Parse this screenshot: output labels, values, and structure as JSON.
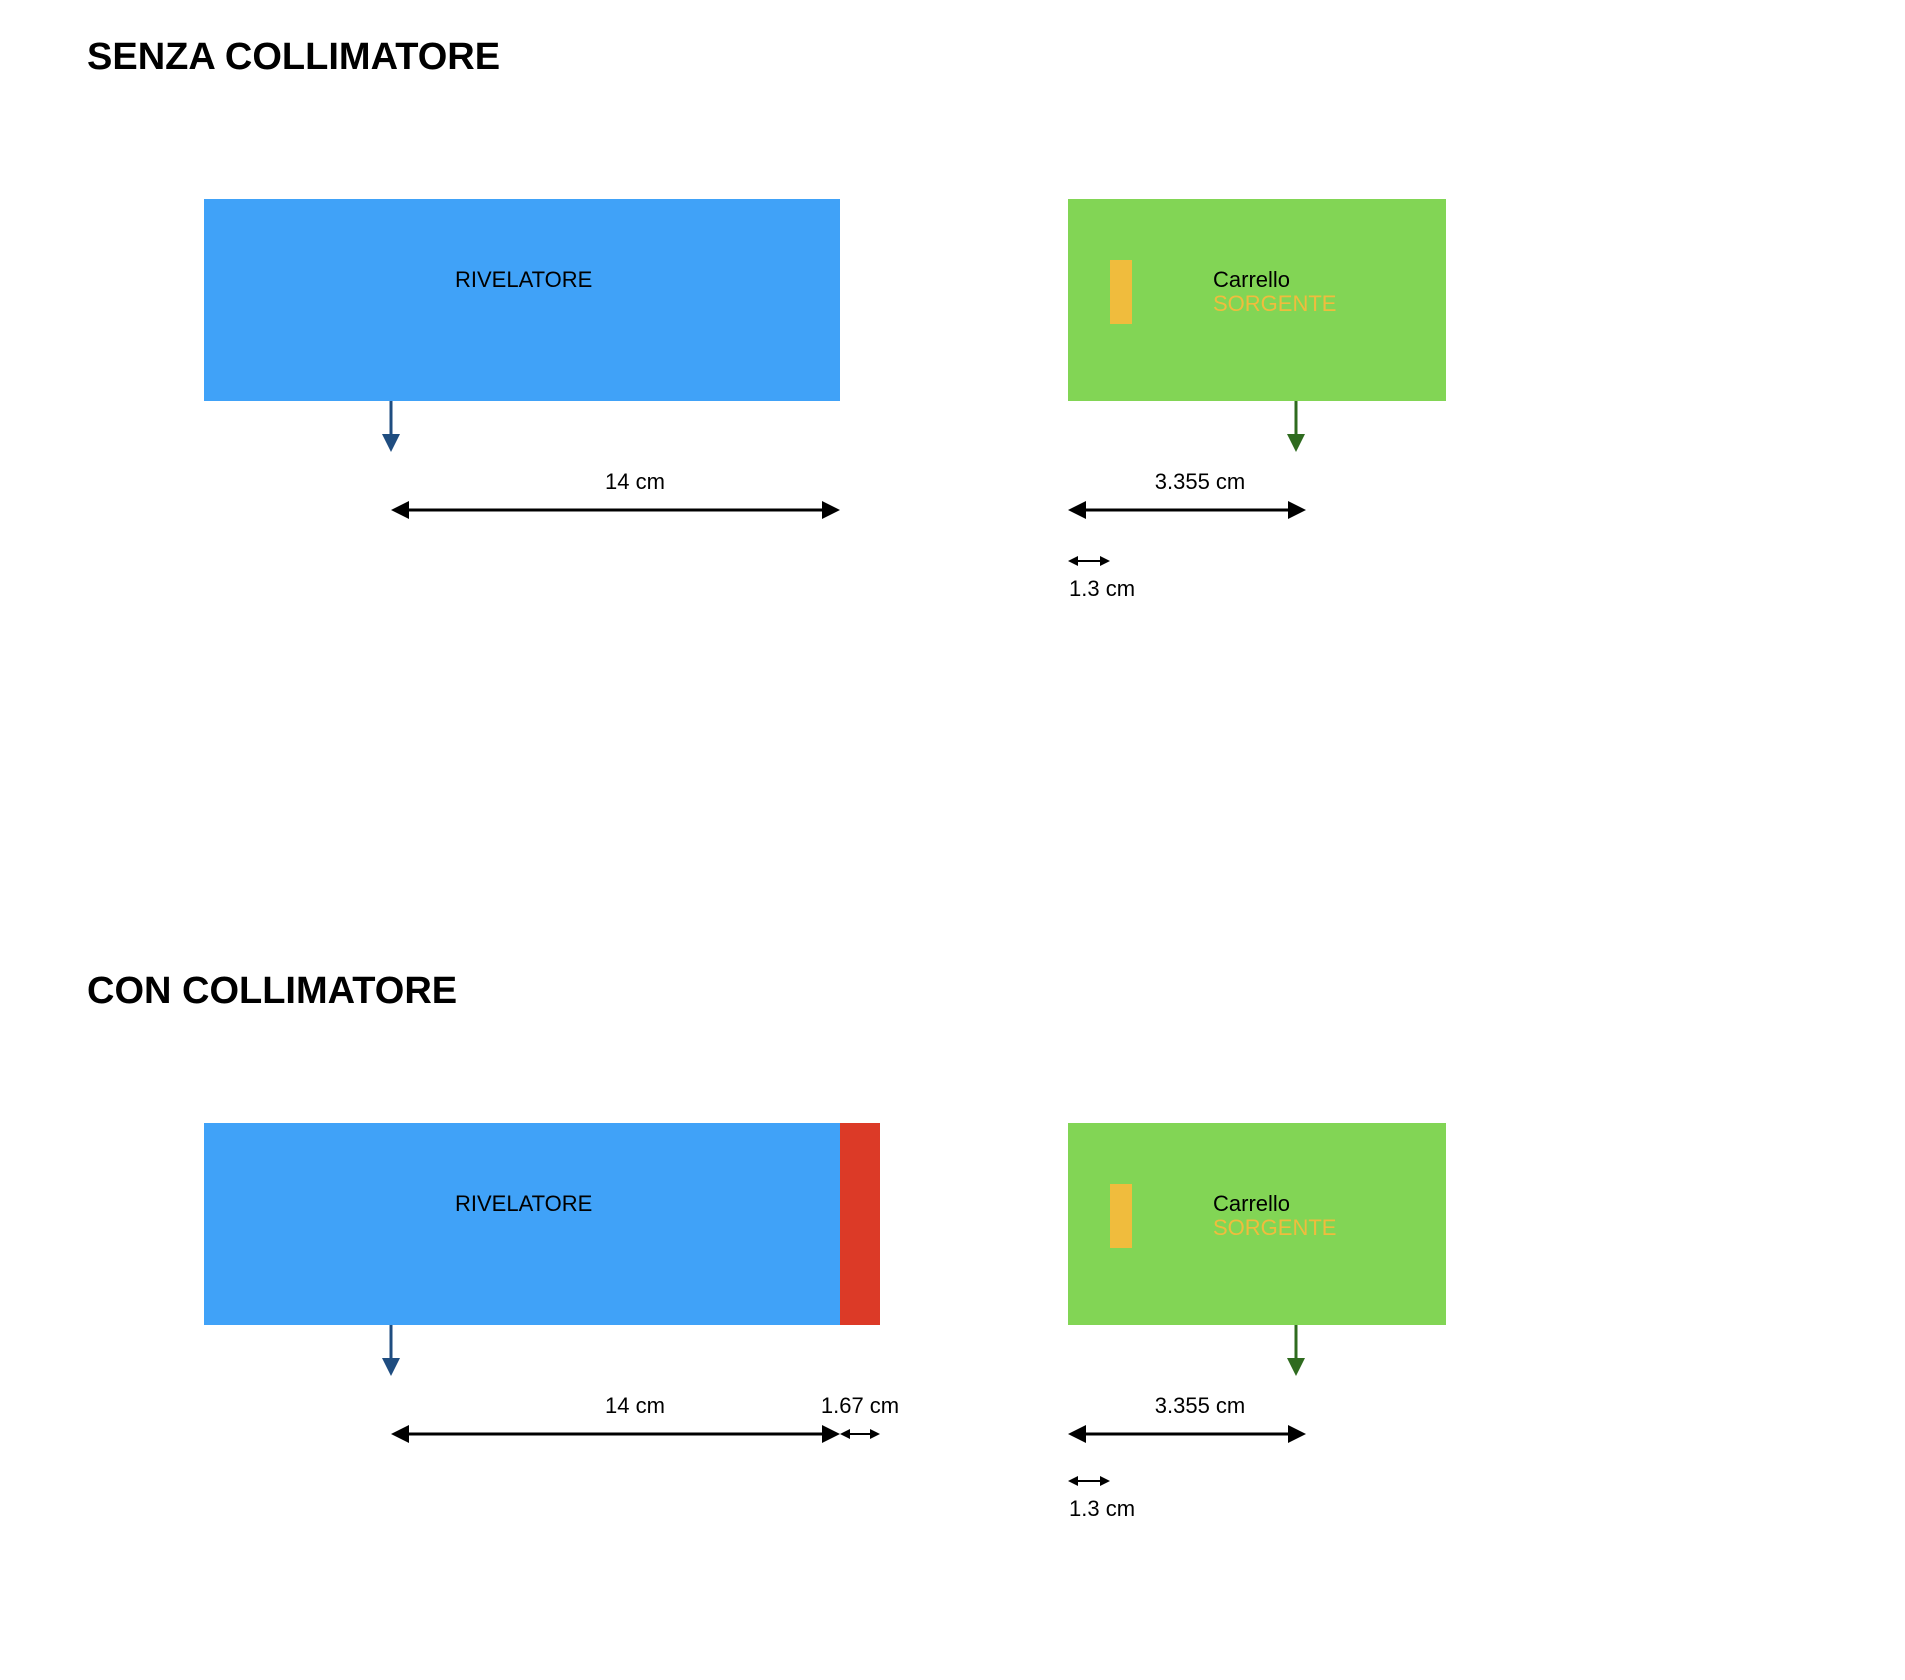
{
  "colors": {
    "detector": "#40a2f8",
    "collimator": "#dc3a27",
    "cart": "#82d555",
    "source": "#f0bc3d",
    "detector_arrow": "#1f4d80",
    "cart_arrow": "#2f6b1f",
    "dimension_line": "#000000"
  },
  "sections": [
    {
      "title": "SENZA COLLIMATORE",
      "detector_label": "RIVELATORE",
      "cart_label": "Carrello",
      "source_label": "SORGENTE",
      "dim_detector": "14 cm",
      "dim_cart": "3.355 cm",
      "dim_source": "1.3 cm"
    },
    {
      "title": "CON COLLIMATORE",
      "detector_label": "RIVELATORE",
      "cart_label": "Carrello",
      "source_label": "SORGENTE",
      "dim_detector": "14 cm",
      "dim_collimator": "1.67 cm",
      "dim_cart": "3.355 cm",
      "dim_source": "1.3 cm"
    }
  ]
}
